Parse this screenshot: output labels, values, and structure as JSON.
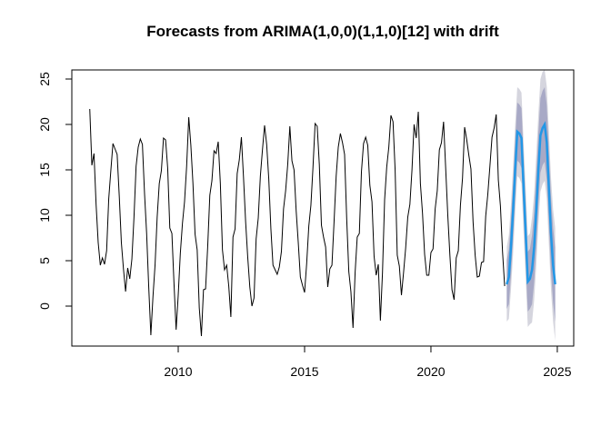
{
  "chart_data": {
    "type": "forecast",
    "title": "Forecasts from ARIMA(1,0,0)(1,1,0)[12] with drift",
    "xlim": [
      2005.79,
      2025.65
    ],
    "ylim": [
      -4.4,
      26
    ],
    "xticks": [
      2010,
      2015,
      2020,
      2025
    ],
    "yticks": [
      0,
      5,
      10,
      15,
      20,
      25
    ],
    "series": [
      {
        "color": "#000000",
        "x": [
          2006.5,
          2006.583,
          2006.667,
          2006.75,
          2006.833,
          2006.917,
          2007,
          2007.083,
          2007.167,
          2007.25,
          2007.333,
          2007.417,
          2007.5,
          2007.583,
          2007.667,
          2007.75,
          2007.833,
          2007.917,
          2008,
          2008.083,
          2008.167,
          2008.25,
          2008.333,
          2008.417,
          2008.5,
          2008.583,
          2008.667,
          2008.75,
          2008.833,
          2008.917,
          2009,
          2009.083,
          2009.167,
          2009.25,
          2009.333,
          2009.417,
          2009.5,
          2009.583,
          2009.667,
          2009.75,
          2009.833,
          2009.917,
          2010,
          2010.083,
          2010.167,
          2010.25,
          2010.333,
          2010.417,
          2010.5,
          2010.583,
          2010.667,
          2010.75,
          2010.833,
          2010.917,
          2011,
          2011.083,
          2011.167,
          2011.25,
          2011.333,
          2011.417,
          2011.5,
          2011.583,
          2011.667,
          2011.75,
          2011.833,
          2011.917,
          2012,
          2012.083,
          2012.167,
          2012.25,
          2012.333,
          2012.417,
          2012.5,
          2012.583,
          2012.667,
          2012.75,
          2012.833,
          2012.917,
          2013,
          2013.083,
          2013.167,
          2013.25,
          2013.333,
          2013.417,
          2013.5,
          2013.583,
          2013.667,
          2013.75,
          2013.833,
          2013.917,
          2014,
          2014.083,
          2014.167,
          2014.25,
          2014.333,
          2014.417,
          2014.5,
          2014.583,
          2014.667,
          2014.75,
          2014.833,
          2014.917,
          2015,
          2015.083,
          2015.167,
          2015.25,
          2015.333,
          2015.417,
          2015.5,
          2015.583,
          2015.667,
          2015.75,
          2015.833,
          2015.917,
          2016,
          2016.083,
          2016.167,
          2016.25,
          2016.333,
          2016.417,
          2016.5,
          2016.583,
          2016.667,
          2016.75,
          2016.833,
          2016.917,
          2017,
          2017.083,
          2017.167,
          2017.25,
          2017.333,
          2017.417,
          2017.5,
          2017.583,
          2017.667,
          2017.75,
          2017.833,
          2017.917,
          2018,
          2018.083,
          2018.167,
          2018.25,
          2018.333,
          2018.417,
          2018.5,
          2018.583,
          2018.667,
          2018.75,
          2018.833,
          2018.917,
          2019,
          2019.083,
          2019.167,
          2019.25,
          2019.333,
          2019.417,
          2019.5,
          2019.583,
          2019.667,
          2019.75,
          2019.833,
          2019.917,
          2020,
          2020.083,
          2020.167,
          2020.25,
          2020.333,
          2020.417,
          2020.5,
          2020.583,
          2020.667,
          2020.75,
          2020.833,
          2020.917,
          2021,
          2021.083,
          2021.167,
          2021.25,
          2021.333,
          2021.417,
          2021.5,
          2021.583,
          2021.667,
          2021.75,
          2021.833,
          2021.917,
          2022,
          2022.083,
          2022.167,
          2022.25,
          2022.333,
          2022.417,
          2022.5,
          2022.583,
          2022.667,
          2022.75,
          2022.833,
          2022.917
        ],
        "values": [
          21.7,
          15.5,
          16.8,
          11.2,
          7.0,
          4.5,
          5.3,
          4.6,
          6.1,
          11.8,
          14.9,
          17.9,
          17.3,
          16.7,
          12.1,
          7.0,
          4.1,
          1.6,
          4.2,
          3.0,
          5.2,
          9.8,
          15.4,
          17.5,
          18.4,
          17.8,
          12.4,
          8.0,
          2.1,
          -3.2,
          1.0,
          4.5,
          9.8,
          13.5,
          14.9,
          18.5,
          18.3,
          15.2,
          8.6,
          8.0,
          2.5,
          -2.6,
          1.2,
          5.8,
          9.1,
          11.5,
          15.4,
          20.8,
          17.7,
          13.5,
          7.9,
          6.2,
          -0.2,
          -3.3,
          1.8,
          1.9,
          6.6,
          12.2,
          13.8,
          17.1,
          16.8,
          18.1,
          13.5,
          6.2,
          4.0,
          4.5,
          2.2,
          -1.2,
          7.6,
          8.5,
          14.6,
          16.1,
          18.6,
          14.2,
          9.3,
          5.4,
          2.1,
          0.0,
          0.9,
          7.4,
          9.7,
          14.3,
          17.2,
          19.9,
          17.8,
          14.0,
          8.5,
          4.5,
          4.0,
          3.5,
          4.3,
          6.0,
          10.7,
          12.7,
          15.6,
          19.8,
          16.0,
          15.0,
          10.5,
          7.0,
          3.2,
          2.3,
          1.5,
          4.7,
          8.8,
          11.1,
          15.3,
          20.1,
          19.8,
          15.6,
          8.9,
          7.6,
          6.5,
          2.1,
          4.1,
          4.5,
          9.3,
          14.3,
          17.5,
          19.0,
          18.0,
          16.7,
          9.6,
          3.8,
          1.6,
          -2.4,
          3.7,
          7.6,
          8.0,
          14.8,
          17.9,
          18.6,
          17.7,
          13.3,
          11.5,
          5.5,
          3.4,
          4.6,
          -1.6,
          3.7,
          11.7,
          15.3,
          17.5,
          21.0,
          20.3,
          15.0,
          5.6,
          4.4,
          1.2,
          3.7,
          6.4,
          9.8,
          11.2,
          15.0,
          20.0,
          18.5,
          21.4,
          13.5,
          10.2,
          5.7,
          3.4,
          3.4,
          5.9,
          6.3,
          10.7,
          12.7,
          17.2,
          18.0,
          20.3,
          15.2,
          10.0,
          5.6,
          1.8,
          0.7,
          5.3,
          6.1,
          11.1,
          14.1,
          19.7,
          18.3,
          16.6,
          15.1,
          9.3,
          5.6,
          3.2,
          3.3,
          4.8,
          4.9,
          9.9,
          12.3,
          15.4,
          18.6,
          19.6,
          21.1,
          13.9,
          11.0,
          6.0,
          2.2
        ]
      }
    ],
    "forecast": {
      "color": "#2297e6",
      "color80": "#a8a9c6",
      "color95": "#d5d5de",
      "x": [
        2023,
        2023.083,
        2023.167,
        2023.25,
        2023.333,
        2023.417,
        2023.5,
        2023.583,
        2023.667,
        2023.75,
        2023.833,
        2023.917,
        2024,
        2024.083,
        2024.167,
        2024.25,
        2024.333,
        2024.417,
        2024.5,
        2024.583,
        2024.667,
        2024.75,
        2024.833,
        2024.917
      ],
      "mean": [
        2.4,
        3.2,
        6.5,
        10.5,
        15.0,
        19.2,
        19.0,
        18.5,
        13.0,
        8.0,
        2.7,
        3.0,
        4.0,
        6.5,
        10.5,
        15.0,
        18.8,
        19.6,
        20.0,
        18.0,
        13.0,
        8.0,
        4.5,
        2.4
      ],
      "lo80": [
        -0.3,
        0.2,
        3.4,
        7.4,
        11.8,
        16.0,
        15.8,
        15.2,
        9.7,
        4.7,
        -0.6,
        -0.3,
        0.2,
        2.6,
        6.5,
        11.0,
        14.7,
        15.5,
        15.9,
        13.9,
        8.9,
        3.9,
        0.4,
        -1.7
      ],
      "hi80": [
        5.1,
        6.2,
        9.6,
        13.6,
        18.2,
        22.4,
        22.2,
        21.8,
        16.3,
        11.3,
        6.0,
        6.3,
        7.8,
        10.4,
        14.5,
        19.0,
        22.9,
        23.7,
        24.1,
        22.1,
        17.1,
        12.1,
        8.6,
        6.5
      ],
      "lo95": [
        -1.7,
        -1.4,
        1.8,
        5.7,
        10.1,
        14.3,
        14.1,
        13.5,
        8.0,
        3.0,
        -2.3,
        -2.0,
        -1.8,
        0.6,
        4.4,
        8.9,
        12.6,
        13.4,
        13.8,
        11.8,
        6.8,
        1.8,
        -1.7,
        -3.8
      ],
      "hi95": [
        6.5,
        7.8,
        11.2,
        15.3,
        19.9,
        24.1,
        23.9,
        23.5,
        18.0,
        13.0,
        7.7,
        8.0,
        9.8,
        12.4,
        16.6,
        21.1,
        25.0,
        25.8,
        26.0,
        24.2,
        19.2,
        14.2,
        10.7,
        8.6
      ]
    }
  }
}
